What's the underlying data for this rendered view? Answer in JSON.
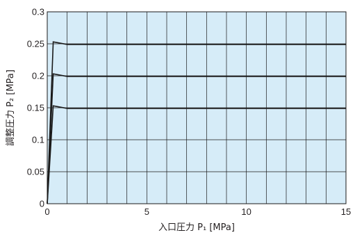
{
  "chart_data": {
    "type": "line",
    "xlabel": "入口圧力 P₁ [MPa]",
    "ylabel": "調整圧力 P₂ [MPa]",
    "xlim": [
      0,
      15
    ],
    "ylim": [
      0,
      0.3
    ],
    "x_ticks": [
      0,
      5,
      10,
      15
    ],
    "x_tick_labels": [
      "0",
      "5",
      "10",
      "15"
    ],
    "y_ticks": [
      0,
      0.05,
      0.1,
      0.15,
      0.2,
      0.25,
      0.3
    ],
    "y_tick_labels": [
      "0",
      "0.05",
      "0.1",
      "0.15",
      "0.2",
      "0.25",
      "0.3"
    ],
    "grid": true,
    "grid_x_step": 1,
    "grid_y_step": 0.05,
    "plot_background": "#d6ecf8",
    "grid_color": "#1a1a1a",
    "line_color": "#1a1a1a",
    "series": [
      {
        "x": [
          0,
          0.3,
          1.0,
          15
        ],
        "y": [
          0,
          0.153,
          0.149,
          0.149
        ]
      },
      {
        "x": [
          0,
          0.3,
          1.0,
          15
        ],
        "y": [
          0,
          0.203,
          0.199,
          0.199
        ]
      },
      {
        "x": [
          0,
          0.3,
          1.0,
          15
        ],
        "y": [
          0,
          0.253,
          0.249,
          0.249
        ]
      }
    ]
  }
}
